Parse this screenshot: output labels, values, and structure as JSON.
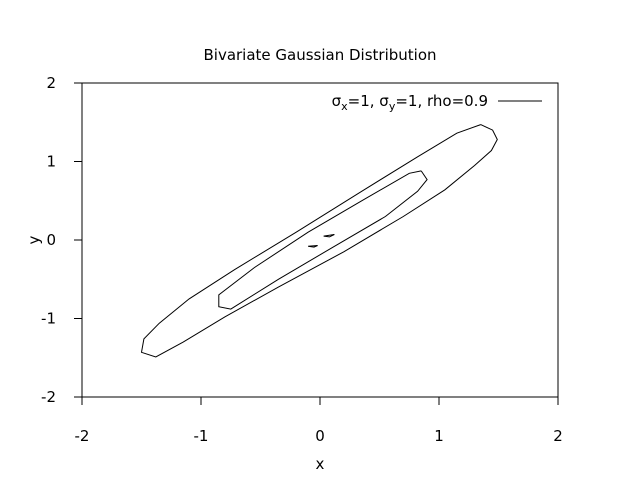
{
  "chart_data": {
    "type": "line",
    "title": "Bivariate Gaussian Distribution",
    "xlabel": "x",
    "ylabel": "y",
    "xlim": [
      -2,
      2
    ],
    "ylim": [
      -2,
      2
    ],
    "xticks": [
      "-2",
      "-1",
      "0",
      "1",
      "2"
    ],
    "yticks": [
      "-2",
      "-1",
      "0",
      "1",
      "2"
    ],
    "grid": false,
    "legend_position": "top-right",
    "legend": {
      "base_sigma": "σ",
      "sub_x": "x",
      "eq_1": "=1, ",
      "base_sigma2": "σ",
      "sub_y": "y",
      "eq_2": "=1, rho=0.9"
    },
    "series": [
      {
        "contour": "outer",
        "points": [
          [
            1.35,
            1.47
          ],
          [
            1.45,
            1.4
          ],
          [
            1.49,
            1.28
          ],
          [
            1.44,
            1.14
          ],
          [
            1.3,
            0.95
          ],
          [
            1.05,
            0.64
          ],
          [
            0.7,
            0.3
          ],
          [
            0.2,
            -0.15
          ],
          [
            -0.35,
            -0.6
          ],
          [
            -0.8,
            -0.98
          ],
          [
            -1.15,
            -1.3
          ],
          [
            -1.38,
            -1.49
          ],
          [
            -1.5,
            -1.43
          ],
          [
            -1.48,
            -1.26
          ],
          [
            -1.35,
            -1.06
          ],
          [
            -1.1,
            -0.75
          ],
          [
            -0.72,
            -0.38
          ],
          [
            -0.2,
            0.1
          ],
          [
            0.35,
            0.62
          ],
          [
            0.82,
            1.06
          ],
          [
            1.15,
            1.36
          ],
          [
            1.35,
            1.47
          ]
        ]
      },
      {
        "contour": "middle",
        "points": [
          [
            0.85,
            0.88
          ],
          [
            0.9,
            0.77
          ],
          [
            0.82,
            0.62
          ],
          [
            0.55,
            0.3
          ],
          [
            0.1,
            -0.1
          ],
          [
            -0.35,
            -0.5
          ],
          [
            -0.75,
            -0.88
          ],
          [
            -0.85,
            -0.85
          ],
          [
            -0.85,
            -0.7
          ],
          [
            -0.55,
            -0.35
          ],
          [
            -0.1,
            0.1
          ],
          [
            0.35,
            0.5
          ],
          [
            0.75,
            0.85
          ],
          [
            0.85,
            0.88
          ]
        ]
      },
      {
        "contour": "inner-1",
        "points": [
          [
            0.03,
            0.05
          ],
          [
            0.12,
            0.07
          ],
          [
            0.08,
            0.04
          ],
          [
            0.03,
            0.05
          ]
        ]
      },
      {
        "contour": "inner-2",
        "points": [
          [
            -0.1,
            -0.08
          ],
          [
            -0.02,
            -0.07
          ],
          [
            -0.05,
            -0.09
          ],
          [
            -0.1,
            -0.08
          ]
        ]
      }
    ]
  }
}
